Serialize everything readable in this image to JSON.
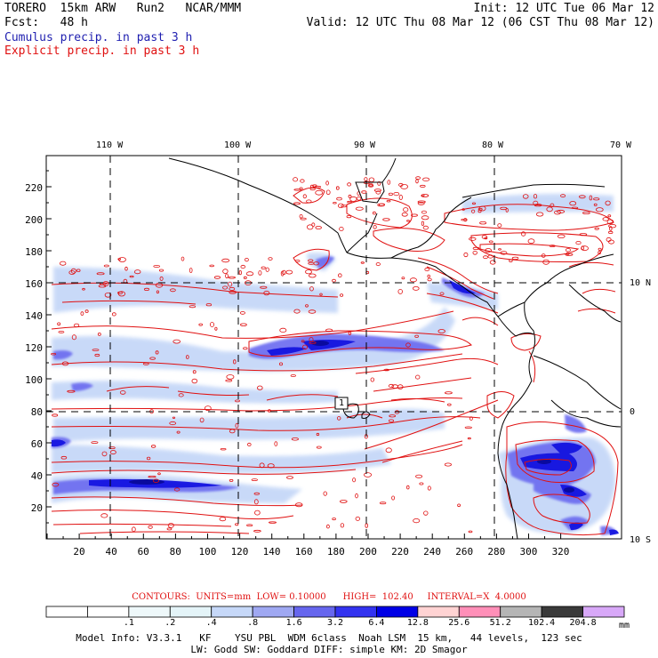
{
  "header": {
    "model": "TORERO  15km ARW   Run2   NCAR/MMM",
    "init": "Init: 12 UTC Tue 06 Mar 12",
    "fcst": "Fcst:   48 h",
    "valid": "Valid: 12 UTC Thu 08 Mar 12 (06 CST Thu 08 Mar 12)",
    "legend_cumulus": "Cumulus precip. in past 3 h",
    "legend_explicit": "Explicit precip. in past 3 h"
  },
  "map": {
    "top_lon_labels": [
      "110 W",
      "100 W",
      "90 W",
      "80 W",
      "70 W"
    ],
    "right_lat_labels": [
      "10 N",
      "0",
      "10 S"
    ],
    "left_y_ticks": [
      "20",
      "40",
      "60",
      "80",
      "100",
      "120",
      "140",
      "160",
      "180",
      "200",
      "220"
    ],
    "bottom_x_ticks": [
      "20",
      "40",
      "60",
      "80",
      "100",
      "120",
      "140",
      "160",
      "180",
      "200",
      "220",
      "240",
      "260",
      "280",
      "300",
      "320"
    ],
    "marker_label": "1",
    "colors": {
      "coast": "#000000",
      "explicit_contour": "#e01010",
      "cumulus_light": "#c6d8f8",
      "cumulus_mid": "#6b6bf0",
      "cumulus_dark": "#1414e0",
      "cumulus_deep": "#0a0a9e"
    }
  },
  "contours_line": "CONTOURS:  UNITS=mm  LOW= 0.10000      HIGH=  102.40     INTERVAL=X  4.0000",
  "colorbar": {
    "labels": [
      ".1",
      ".2",
      ".4",
      ".8",
      "1.6",
      "3.2",
      "6.4",
      "12.8",
      "25.6",
      "51.2",
      "102.4",
      "204.8"
    ],
    "unit": "mm",
    "colors": [
      "#ffffff",
      "#ffffff",
      "#eef8fa",
      "#e4f4f8",
      "#c6d8f8",
      "#9fa8f2",
      "#6666ee",
      "#3333f0",
      "#0000e6",
      "#ffd3d3",
      "#ff8fb8",
      "#b5b5b5",
      "#3a3a3a",
      "#d8a8f8"
    ]
  },
  "footer": {
    "line1": "Model Info: V3.3.1   KF    YSU PBL  WDM 6class  Noah LSM  15 km,   44 levels,  123 sec",
    "line2": "LW: Godd SW: Goddard DIFF: simple KM: 2D Smagor"
  }
}
